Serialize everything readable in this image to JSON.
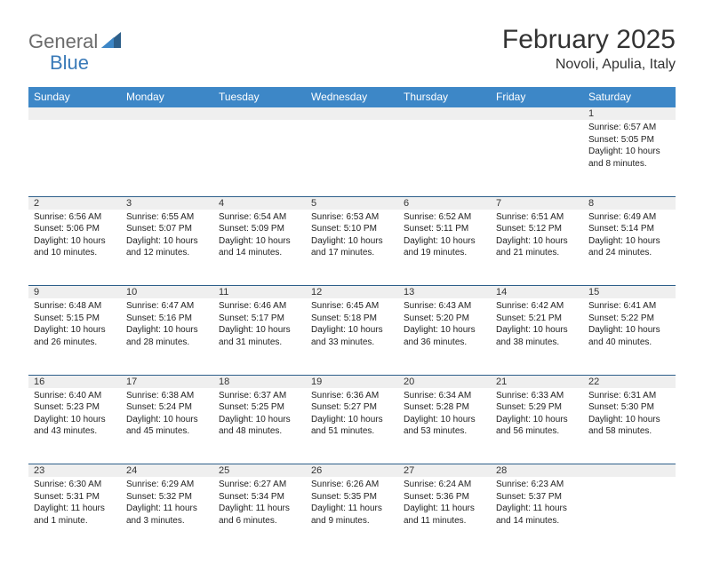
{
  "brand": {
    "general": "General",
    "blue": "Blue"
  },
  "title": "February 2025",
  "subtitle": "Novoli, Apulia, Italy",
  "colors": {
    "header_bg": "#3d87c7",
    "header_text": "#ffffff",
    "row_border": "#2d5f8a",
    "daynum_bg": "#efefef",
    "logo_general": "#6b6b6b",
    "logo_blue": "#3a7ab8",
    "page_bg": "#ffffff",
    "text": "#222222"
  },
  "dayHeaders": [
    "Sunday",
    "Monday",
    "Tuesday",
    "Wednesday",
    "Thursday",
    "Friday",
    "Saturday"
  ],
  "weeks": [
    [
      {
        "n": "",
        "lines": []
      },
      {
        "n": "",
        "lines": []
      },
      {
        "n": "",
        "lines": []
      },
      {
        "n": "",
        "lines": []
      },
      {
        "n": "",
        "lines": []
      },
      {
        "n": "",
        "lines": []
      },
      {
        "n": "1",
        "lines": [
          "Sunrise: 6:57 AM",
          "Sunset: 5:05 PM",
          "Daylight: 10 hours and 8 minutes."
        ]
      }
    ],
    [
      {
        "n": "2",
        "lines": [
          "Sunrise: 6:56 AM",
          "Sunset: 5:06 PM",
          "Daylight: 10 hours and 10 minutes."
        ]
      },
      {
        "n": "3",
        "lines": [
          "Sunrise: 6:55 AM",
          "Sunset: 5:07 PM",
          "Daylight: 10 hours and 12 minutes."
        ]
      },
      {
        "n": "4",
        "lines": [
          "Sunrise: 6:54 AM",
          "Sunset: 5:09 PM",
          "Daylight: 10 hours and 14 minutes."
        ]
      },
      {
        "n": "5",
        "lines": [
          "Sunrise: 6:53 AM",
          "Sunset: 5:10 PM",
          "Daylight: 10 hours and 17 minutes."
        ]
      },
      {
        "n": "6",
        "lines": [
          "Sunrise: 6:52 AM",
          "Sunset: 5:11 PM",
          "Daylight: 10 hours and 19 minutes."
        ]
      },
      {
        "n": "7",
        "lines": [
          "Sunrise: 6:51 AM",
          "Sunset: 5:12 PM",
          "Daylight: 10 hours and 21 minutes."
        ]
      },
      {
        "n": "8",
        "lines": [
          "Sunrise: 6:49 AM",
          "Sunset: 5:14 PM",
          "Daylight: 10 hours and 24 minutes."
        ]
      }
    ],
    [
      {
        "n": "9",
        "lines": [
          "Sunrise: 6:48 AM",
          "Sunset: 5:15 PM",
          "Daylight: 10 hours and 26 minutes."
        ]
      },
      {
        "n": "10",
        "lines": [
          "Sunrise: 6:47 AM",
          "Sunset: 5:16 PM",
          "Daylight: 10 hours and 28 minutes."
        ]
      },
      {
        "n": "11",
        "lines": [
          "Sunrise: 6:46 AM",
          "Sunset: 5:17 PM",
          "Daylight: 10 hours and 31 minutes."
        ]
      },
      {
        "n": "12",
        "lines": [
          "Sunrise: 6:45 AM",
          "Sunset: 5:18 PM",
          "Daylight: 10 hours and 33 minutes."
        ]
      },
      {
        "n": "13",
        "lines": [
          "Sunrise: 6:43 AM",
          "Sunset: 5:20 PM",
          "Daylight: 10 hours and 36 minutes."
        ]
      },
      {
        "n": "14",
        "lines": [
          "Sunrise: 6:42 AM",
          "Sunset: 5:21 PM",
          "Daylight: 10 hours and 38 minutes."
        ]
      },
      {
        "n": "15",
        "lines": [
          "Sunrise: 6:41 AM",
          "Sunset: 5:22 PM",
          "Daylight: 10 hours and 40 minutes."
        ]
      }
    ],
    [
      {
        "n": "16",
        "lines": [
          "Sunrise: 6:40 AM",
          "Sunset: 5:23 PM",
          "Daylight: 10 hours and 43 minutes."
        ]
      },
      {
        "n": "17",
        "lines": [
          "Sunrise: 6:38 AM",
          "Sunset: 5:24 PM",
          "Daylight: 10 hours and 45 minutes."
        ]
      },
      {
        "n": "18",
        "lines": [
          "Sunrise: 6:37 AM",
          "Sunset: 5:25 PM",
          "Daylight: 10 hours and 48 minutes."
        ]
      },
      {
        "n": "19",
        "lines": [
          "Sunrise: 6:36 AM",
          "Sunset: 5:27 PM",
          "Daylight: 10 hours and 51 minutes."
        ]
      },
      {
        "n": "20",
        "lines": [
          "Sunrise: 6:34 AM",
          "Sunset: 5:28 PM",
          "Daylight: 10 hours and 53 minutes."
        ]
      },
      {
        "n": "21",
        "lines": [
          "Sunrise: 6:33 AM",
          "Sunset: 5:29 PM",
          "Daylight: 10 hours and 56 minutes."
        ]
      },
      {
        "n": "22",
        "lines": [
          "Sunrise: 6:31 AM",
          "Sunset: 5:30 PM",
          "Daylight: 10 hours and 58 minutes."
        ]
      }
    ],
    [
      {
        "n": "23",
        "lines": [
          "Sunrise: 6:30 AM",
          "Sunset: 5:31 PM",
          "Daylight: 11 hours and 1 minute."
        ]
      },
      {
        "n": "24",
        "lines": [
          "Sunrise: 6:29 AM",
          "Sunset: 5:32 PM",
          "Daylight: 11 hours and 3 minutes."
        ]
      },
      {
        "n": "25",
        "lines": [
          "Sunrise: 6:27 AM",
          "Sunset: 5:34 PM",
          "Daylight: 11 hours and 6 minutes."
        ]
      },
      {
        "n": "26",
        "lines": [
          "Sunrise: 6:26 AM",
          "Sunset: 5:35 PM",
          "Daylight: 11 hours and 9 minutes."
        ]
      },
      {
        "n": "27",
        "lines": [
          "Sunrise: 6:24 AM",
          "Sunset: 5:36 PM",
          "Daylight: 11 hours and 11 minutes."
        ]
      },
      {
        "n": "28",
        "lines": [
          "Sunrise: 6:23 AM",
          "Sunset: 5:37 PM",
          "Daylight: 11 hours and 14 minutes."
        ]
      },
      {
        "n": "",
        "lines": []
      }
    ]
  ]
}
